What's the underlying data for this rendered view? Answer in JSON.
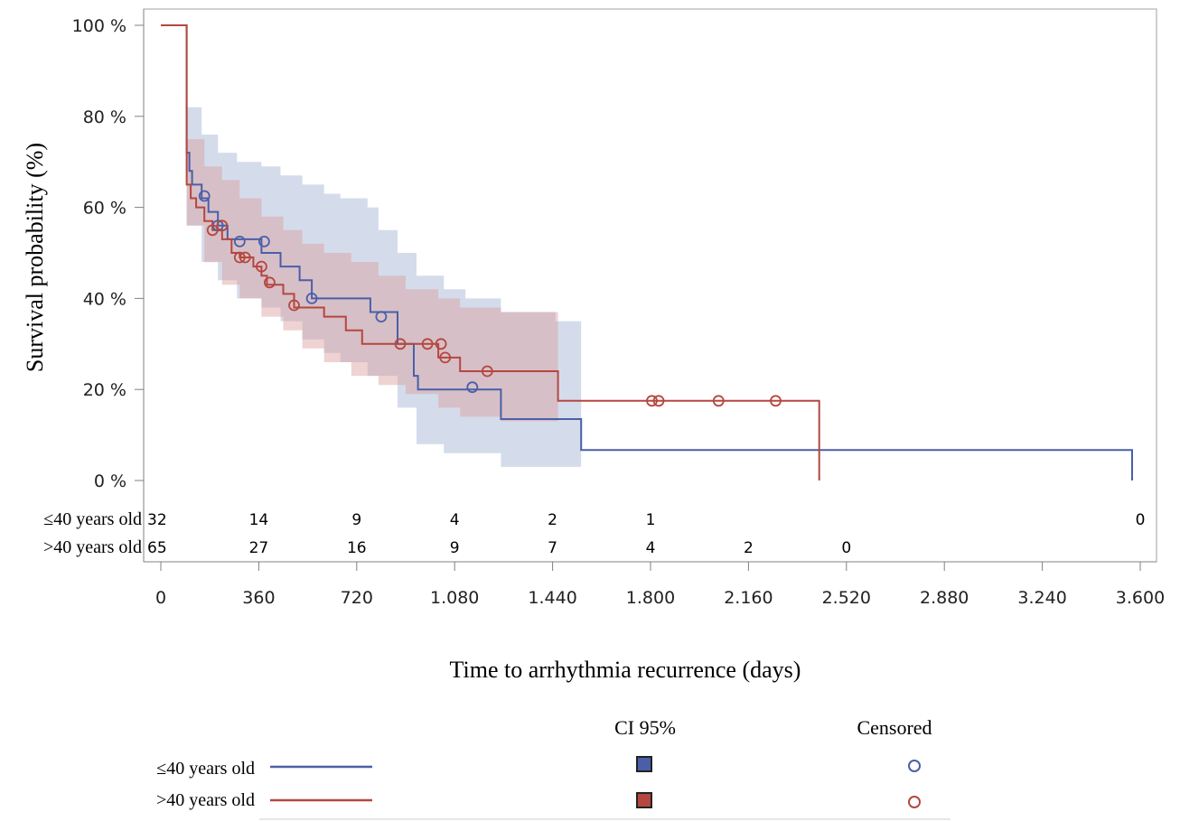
{
  "chart_data": {
    "type": "line",
    "subtype": "kaplan-meier",
    "title": "",
    "xlabel": "Time to arrhythmia recurrence (days)",
    "ylabel": "Survival probability (%)",
    "xlim": [
      0,
      3600
    ],
    "ylim": [
      0,
      100
    ],
    "x_ticks": [
      0,
      360,
      720,
      1080,
      1440,
      1800,
      2160,
      2520,
      2880,
      3240,
      3600
    ],
    "x_tick_labels": [
      "0",
      "360",
      "720",
      "1.080",
      "1.440",
      "1.800",
      "2.160",
      "2.520",
      "2.880",
      "3.240",
      "3.600"
    ],
    "y_ticks": [
      0,
      20,
      40,
      60,
      80,
      100
    ],
    "y_tick_labels": [
      "0 %",
      "20 %",
      "40 %",
      "60 %",
      "80 %",
      "100 %"
    ],
    "grid": false,
    "legend": {
      "position": "bottom",
      "ci_header": "CI 95%",
      "censored_header": "Censored"
    },
    "series": [
      {
        "name": "≤40 years old",
        "color": "#4a5fa8",
        "ci_color": "#a9b9d8",
        "steps": [
          [
            0,
            100
          ],
          [
            95,
            100
          ],
          [
            95,
            72
          ],
          [
            105,
            68
          ],
          [
            115,
            65
          ],
          [
            150,
            62
          ],
          [
            175,
            59
          ],
          [
            210,
            56
          ],
          [
            245,
            53
          ],
          [
            370,
            53
          ],
          [
            370,
            50
          ],
          [
            440,
            47
          ],
          [
            510,
            44
          ],
          [
            555,
            40
          ],
          [
            770,
            40
          ],
          [
            770,
            37
          ],
          [
            870,
            30
          ],
          [
            930,
            23
          ],
          [
            945,
            20
          ],
          [
            1250,
            20
          ],
          [
            1250,
            13.5
          ],
          [
            1545,
            13.5
          ],
          [
            1545,
            6.7
          ],
          [
            3570,
            6.7
          ],
          [
            3570,
            0
          ]
        ],
        "ci_upper": [
          [
            95,
            82
          ],
          [
            150,
            76
          ],
          [
            210,
            72
          ],
          [
            280,
            70
          ],
          [
            370,
            69
          ],
          [
            440,
            67
          ],
          [
            520,
            65
          ],
          [
            600,
            63
          ],
          [
            660,
            62
          ],
          [
            760,
            60
          ],
          [
            800,
            55
          ],
          [
            870,
            50
          ],
          [
            940,
            45
          ],
          [
            1040,
            42
          ],
          [
            1120,
            40
          ],
          [
            1250,
            37
          ],
          [
            1450,
            35
          ],
          [
            1545,
            33
          ]
        ],
        "ci_lower": [
          [
            95,
            56
          ],
          [
            150,
            48
          ],
          [
            210,
            44
          ],
          [
            280,
            40
          ],
          [
            370,
            38
          ],
          [
            440,
            35
          ],
          [
            520,
            31
          ],
          [
            600,
            28
          ],
          [
            660,
            26
          ],
          [
            760,
            23
          ],
          [
            870,
            16
          ],
          [
            940,
            8
          ],
          [
            1040,
            6
          ],
          [
            1250,
            3
          ],
          [
            1450,
            3
          ],
          [
            1545,
            3
          ]
        ],
        "censored": [
          [
            160,
            62.5
          ],
          [
            210,
            56
          ],
          [
            290,
            52.5
          ],
          [
            380,
            52.5
          ],
          [
            555,
            40
          ],
          [
            810,
            36
          ],
          [
            1145,
            20.5
          ]
        ],
        "at_risk": [
          {
            "t": 0,
            "n": "32"
          },
          {
            "t": 360,
            "n": "14"
          },
          {
            "t": 720,
            "n": "9"
          },
          {
            "t": 1080,
            "n": "4"
          },
          {
            "t": 1440,
            "n": "2"
          },
          {
            "t": 1800,
            "n": "1"
          },
          {
            "t": 3600,
            "n": "0"
          }
        ]
      },
      {
        "name": ">40 years old",
        "color": "#b5473f",
        "ci_color": "#dc9c9c",
        "steps": [
          [
            0,
            100
          ],
          [
            95,
            100
          ],
          [
            95,
            65
          ],
          [
            110,
            62
          ],
          [
            130,
            60
          ],
          [
            160,
            57
          ],
          [
            190,
            55
          ],
          [
            225,
            53
          ],
          [
            260,
            50
          ],
          [
            290,
            49
          ],
          [
            340,
            47
          ],
          [
            370,
            45
          ],
          [
            390,
            43
          ],
          [
            450,
            41
          ],
          [
            490,
            38
          ],
          [
            600,
            36
          ],
          [
            680,
            33
          ],
          [
            740,
            30
          ],
          [
            880,
            30
          ],
          [
            1020,
            27
          ],
          [
            1100,
            24
          ],
          [
            1440,
            24
          ],
          [
            1460,
            17.5
          ],
          [
            2420,
            17.5
          ],
          [
            2420,
            0
          ]
        ],
        "ci_upper": [
          [
            95,
            75
          ],
          [
            160,
            69
          ],
          [
            225,
            66
          ],
          [
            290,
            62
          ],
          [
            370,
            58
          ],
          [
            450,
            55
          ],
          [
            520,
            52
          ],
          [
            600,
            50
          ],
          [
            700,
            48
          ],
          [
            800,
            45
          ],
          [
            900,
            42
          ],
          [
            1020,
            40
          ],
          [
            1100,
            38
          ],
          [
            1250,
            37
          ],
          [
            1460,
            36
          ]
        ],
        "ci_lower": [
          [
            95,
            56
          ],
          [
            160,
            48
          ],
          [
            225,
            43
          ],
          [
            290,
            40
          ],
          [
            370,
            36
          ],
          [
            450,
            33
          ],
          [
            520,
            29
          ],
          [
            600,
            26
          ],
          [
            700,
            23
          ],
          [
            800,
            21
          ],
          [
            900,
            19
          ],
          [
            1020,
            16
          ],
          [
            1100,
            14
          ],
          [
            1250,
            13
          ],
          [
            1460,
            12
          ]
        ],
        "censored": [
          [
            190,
            55
          ],
          [
            225,
            56
          ],
          [
            290,
            49
          ],
          [
            310,
            49
          ],
          [
            370,
            47
          ],
          [
            400,
            43.5
          ],
          [
            490,
            38.5
          ],
          [
            880,
            30
          ],
          [
            980,
            30
          ],
          [
            1030,
            30
          ],
          [
            1045,
            27
          ],
          [
            1200,
            24
          ],
          [
            1805,
            17.5
          ],
          [
            1830,
            17.5
          ],
          [
            2050,
            17.5
          ],
          [
            2260,
            17.5
          ]
        ],
        "at_risk": [
          {
            "t": 0,
            "n": "65"
          },
          {
            "t": 360,
            "n": "27"
          },
          {
            "t": 720,
            "n": "16"
          },
          {
            "t": 1080,
            "n": "9"
          },
          {
            "t": 1440,
            "n": "7"
          },
          {
            "t": 1800,
            "n": "4"
          },
          {
            "t": 2160,
            "n": "2"
          },
          {
            "t": 2520,
            "n": "0"
          }
        ]
      }
    ]
  }
}
